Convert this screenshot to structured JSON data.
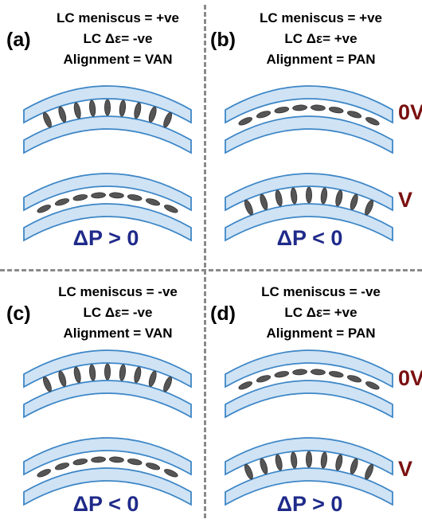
{
  "panels": [
    {
      "label": "(a)",
      "meniscus": "LC meniscus = +ve",
      "delta_eps": "LC Δε= -ve",
      "alignment": "Alignment = VAN",
      "delta_p": "ΔP > 0",
      "top_lc": "vertical",
      "bottom_lc": "horizontal"
    },
    {
      "label": "(b)",
      "meniscus": "LC meniscus = +ve",
      "delta_eps": "LC Δε= +ve",
      "alignment": "Alignment = PAN",
      "delta_p": "ΔP < 0",
      "top_lc": "horizontal",
      "bottom_lc": "vertical"
    },
    {
      "label": "(c)",
      "meniscus": "LC meniscus = -ve",
      "delta_eps": "LC Δε= -ve",
      "alignment": "Alignment = VAN",
      "delta_p": "ΔP < 0",
      "top_lc": "vertical",
      "bottom_lc": "horizontal"
    },
    {
      "label": "(d)",
      "meniscus": "LC meniscus = -ve",
      "delta_eps": "LC Δε= +ve",
      "alignment": "Alignment = PAN",
      "delta_p": "ΔP > 0",
      "top_lc": "horizontal",
      "bottom_lc": "vertical"
    }
  ],
  "voltage_labels": {
    "off": "0V",
    "on": "V"
  },
  "colors": {
    "glass_fill": "#cfe3f5",
    "glass_stroke": "#3d86c6",
    "molecule": "#555555",
    "delta_p": "#1f2a8a",
    "voltage": "#7a1010",
    "divider": "#8a8a8a"
  }
}
